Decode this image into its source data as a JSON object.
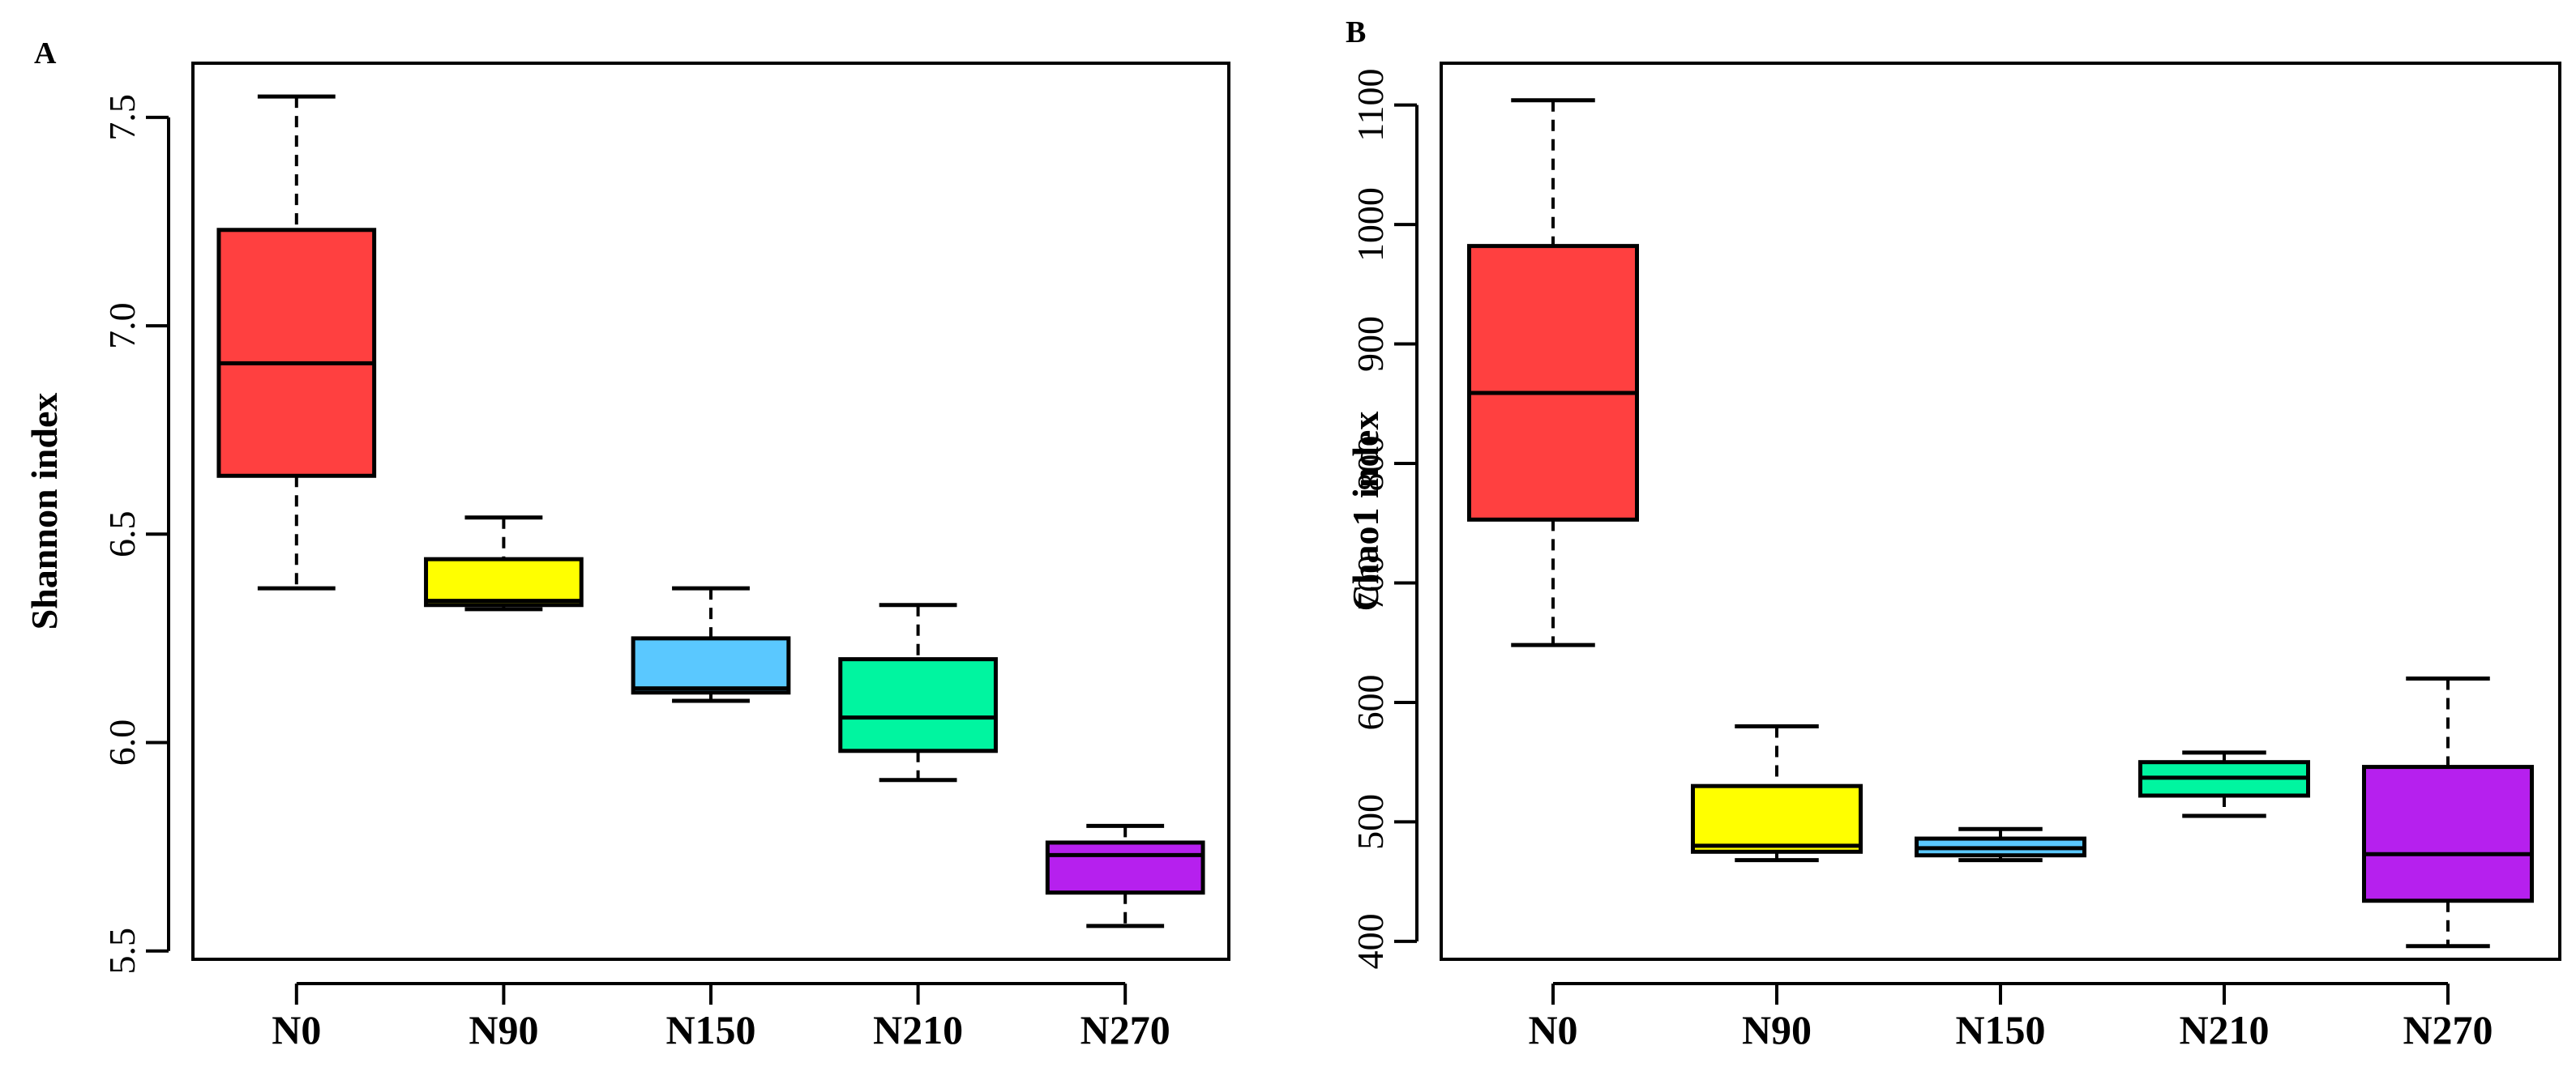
{
  "chart_data": [
    {
      "type": "boxplot",
      "panel": "A",
      "title": "",
      "xlabel": "",
      "ylabel": "Shannon index",
      "ylim": [
        5.48,
        7.63
      ],
      "yticks": [
        5.5,
        6.0,
        6.5,
        7.0,
        7.5
      ],
      "ytick_labels": [
        "5.5",
        "6.0",
        "6.5",
        "7.0",
        "7.5"
      ],
      "categories": [
        "N0",
        "N90",
        "N150",
        "N210",
        "N270"
      ],
      "boxes": [
        {
          "category": "N0",
          "color": "#ff4040",
          "min": 6.37,
          "q1": 6.64,
          "median": 6.91,
          "q3": 7.23,
          "max": 7.55
        },
        {
          "category": "N90",
          "color": "#ffff00",
          "min": 6.32,
          "q1": 6.33,
          "median": 6.34,
          "q3": 6.44,
          "max": 6.54
        },
        {
          "category": "N150",
          "color": "#5ac8ff",
          "min": 6.1,
          "q1": 6.12,
          "median": 6.13,
          "q3": 6.25,
          "max": 6.37
        },
        {
          "category": "N210",
          "color": "#00f5a0",
          "min": 5.91,
          "q1": 5.98,
          "median": 6.06,
          "q3": 6.2,
          "max": 6.33
        },
        {
          "category": "N270",
          "color": "#b620ee",
          "min": 5.56,
          "q1": 5.64,
          "median": 5.73,
          "q3": 5.76,
          "max": 5.8
        }
      ]
    },
    {
      "type": "boxplot",
      "panel": "B",
      "title": "",
      "xlabel": "",
      "ylabel": "Chao1 index",
      "ylim": [
        385,
        1135
      ],
      "yticks": [
        400,
        500,
        600,
        700,
        800,
        900,
        1000,
        1100
      ],
      "ytick_labels": [
        "400",
        "500",
        "600",
        "700",
        "800",
        "900",
        "1000",
        "1100"
      ],
      "categories": [
        "N0",
        "N90",
        "N150",
        "N210",
        "N270"
      ],
      "boxes": [
        {
          "category": "N0",
          "color": "#ff4040",
          "min": 648,
          "q1": 753,
          "median": 859,
          "q3": 982,
          "max": 1104
        },
        {
          "category": "N90",
          "color": "#ffff00",
          "min": 468,
          "q1": 475,
          "median": 480,
          "q3": 530,
          "max": 580
        },
        {
          "category": "N150",
          "color": "#5ac8ff",
          "min": 468,
          "q1": 472,
          "median": 478,
          "q3": 486,
          "max": 494
        },
        {
          "category": "N210",
          "color": "#00f5a0",
          "min": 505,
          "q1": 522,
          "median": 537,
          "q3": 550,
          "max": 558
        },
        {
          "category": "N270",
          "color": "#b620ee",
          "min": 396,
          "q1": 434,
          "median": 473,
          "q3": 546,
          "max": 620
        }
      ]
    }
  ]
}
